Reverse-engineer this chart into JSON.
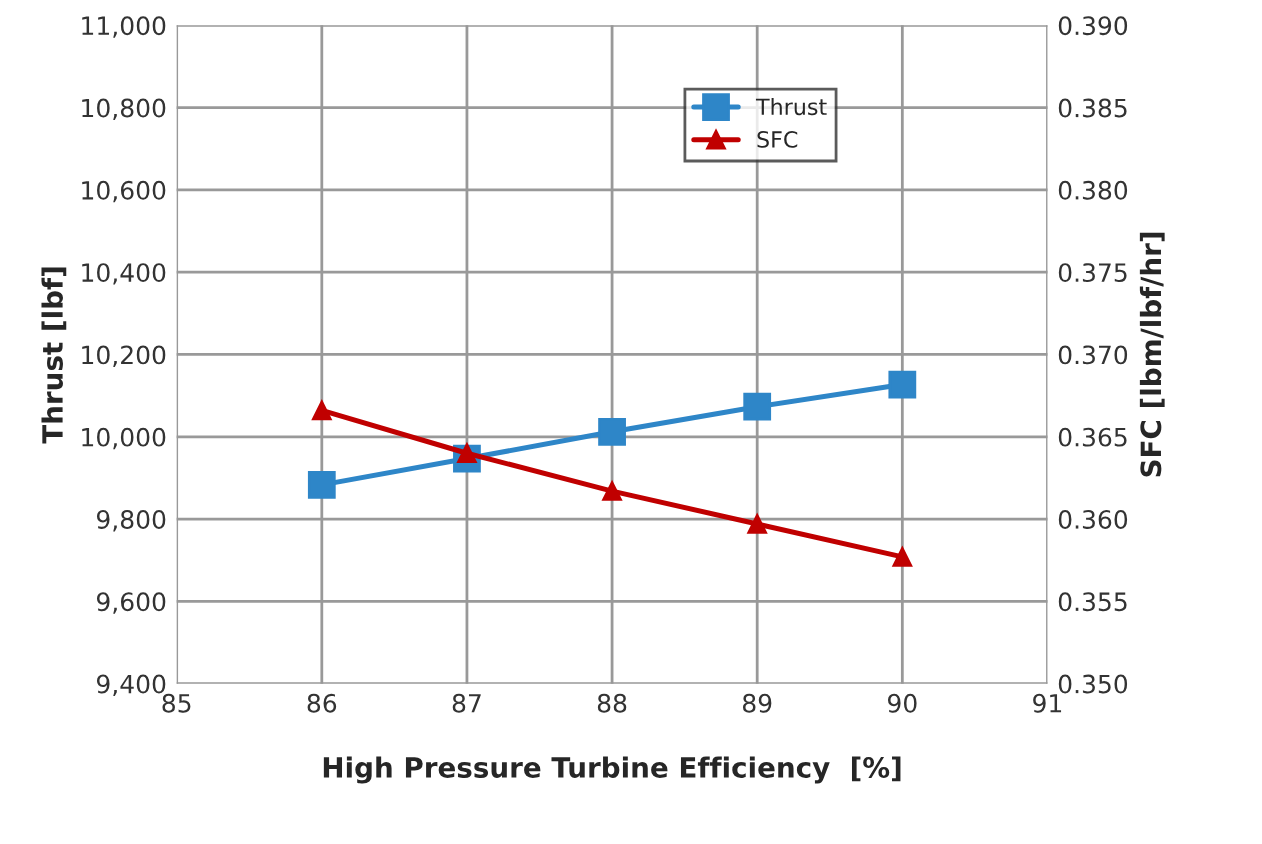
{
  "chart_data": {
    "type": "line",
    "xlabel": "High Pressure Turbine Efficiency  [%]",
    "ylabel": "Thrust [lbf]",
    "y2label": "SFC [lbm/lbf/hr]",
    "x": [
      86,
      87,
      88,
      89,
      90
    ],
    "series": [
      {
        "name": "Thrust",
        "color": "#2e86c8",
        "marker": "square",
        "values": [
          9883,
          9947,
          10012,
          10073,
          10127
        ]
      },
      {
        "name": "SFC",
        "color": "#c00000",
        "marker": "triangle",
        "axis": "y2",
        "values": [
          0.3666,
          0.364,
          0.3617,
          0.3597,
          0.3577
        ]
      }
    ],
    "xlim": [
      85,
      91
    ],
    "xticks": [
      85,
      86,
      87,
      88,
      89,
      90,
      91
    ],
    "ylim": [
      9400,
      11000
    ],
    "yticks": [
      {
        "value": 9400,
        "label": "9,400"
      },
      {
        "value": 9600,
        "label": "9,600"
      },
      {
        "value": 9800,
        "label": "9,800"
      },
      {
        "value": 10000,
        "label": "10,000"
      },
      {
        "value": 10200,
        "label": "10,200"
      },
      {
        "value": 10400,
        "label": "10,400"
      },
      {
        "value": 10600,
        "label": "10,600"
      },
      {
        "value": 10800,
        "label": "10,800"
      },
      {
        "value": 11000,
        "label": "11,000"
      }
    ],
    "y2lim": [
      0.35,
      0.39
    ],
    "y2ticks": [
      {
        "value": 0.35,
        "label": "0.350"
      },
      {
        "value": 0.355,
        "label": "0.355"
      },
      {
        "value": 0.36,
        "label": "0.360"
      },
      {
        "value": 0.365,
        "label": "0.365"
      },
      {
        "value": 0.37,
        "label": "0.370"
      },
      {
        "value": 0.375,
        "label": "0.375"
      },
      {
        "value": 0.38,
        "label": "0.380"
      },
      {
        "value": 0.385,
        "label": "0.385"
      },
      {
        "value": 0.39,
        "label": "0.390"
      }
    ],
    "grid": true,
    "legend": "top right",
    "line_style": "solid"
  }
}
